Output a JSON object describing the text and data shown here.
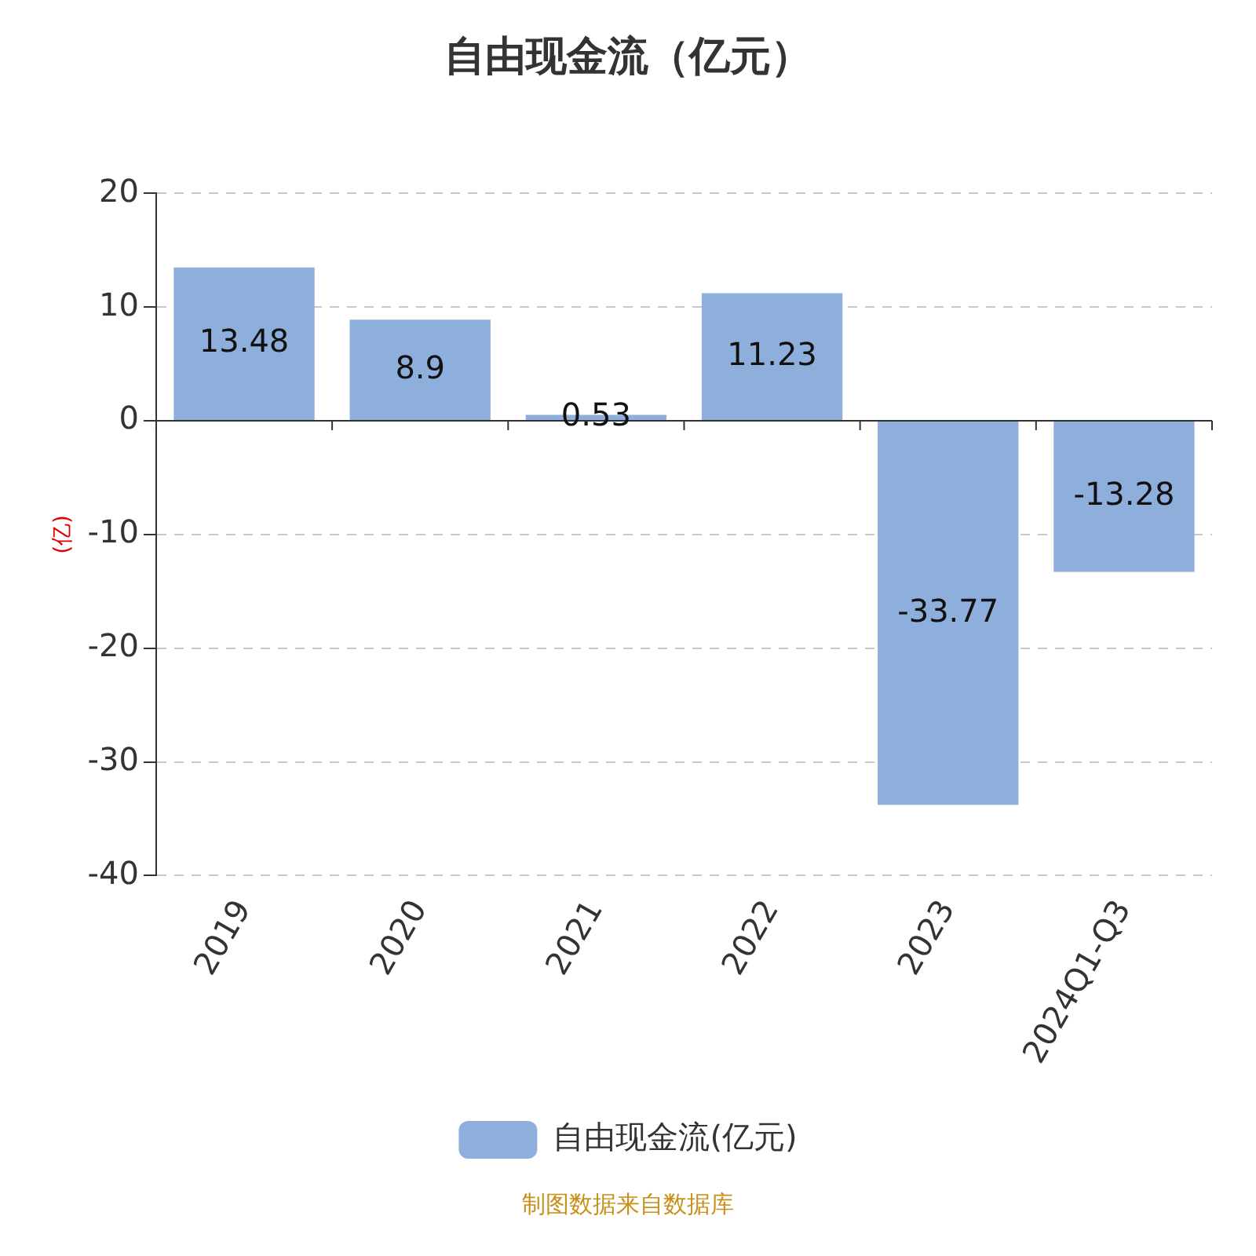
{
  "chart_data": {
    "type": "bar",
    "title": "自由现金流（亿元）",
    "ylabel": "(亿)",
    "categories": [
      "2019",
      "2020",
      "2021",
      "2022",
      "2023",
      "2024Q1-Q3"
    ],
    "series": [
      {
        "name": "自由现金流(亿元)",
        "color": "#8eaedb",
        "values": [
          13.48,
          8.9,
          0.53,
          11.23,
          -33.77,
          -13.28
        ]
      }
    ],
    "ylim": [
      -40,
      20
    ],
    "yticks": [
      -40,
      -30,
      -20,
      -10,
      0,
      10,
      20
    ],
    "grid": "y",
    "legend": "bottom",
    "data_labels": true,
    "annotations": [
      "制图数据来自数据库"
    ]
  }
}
